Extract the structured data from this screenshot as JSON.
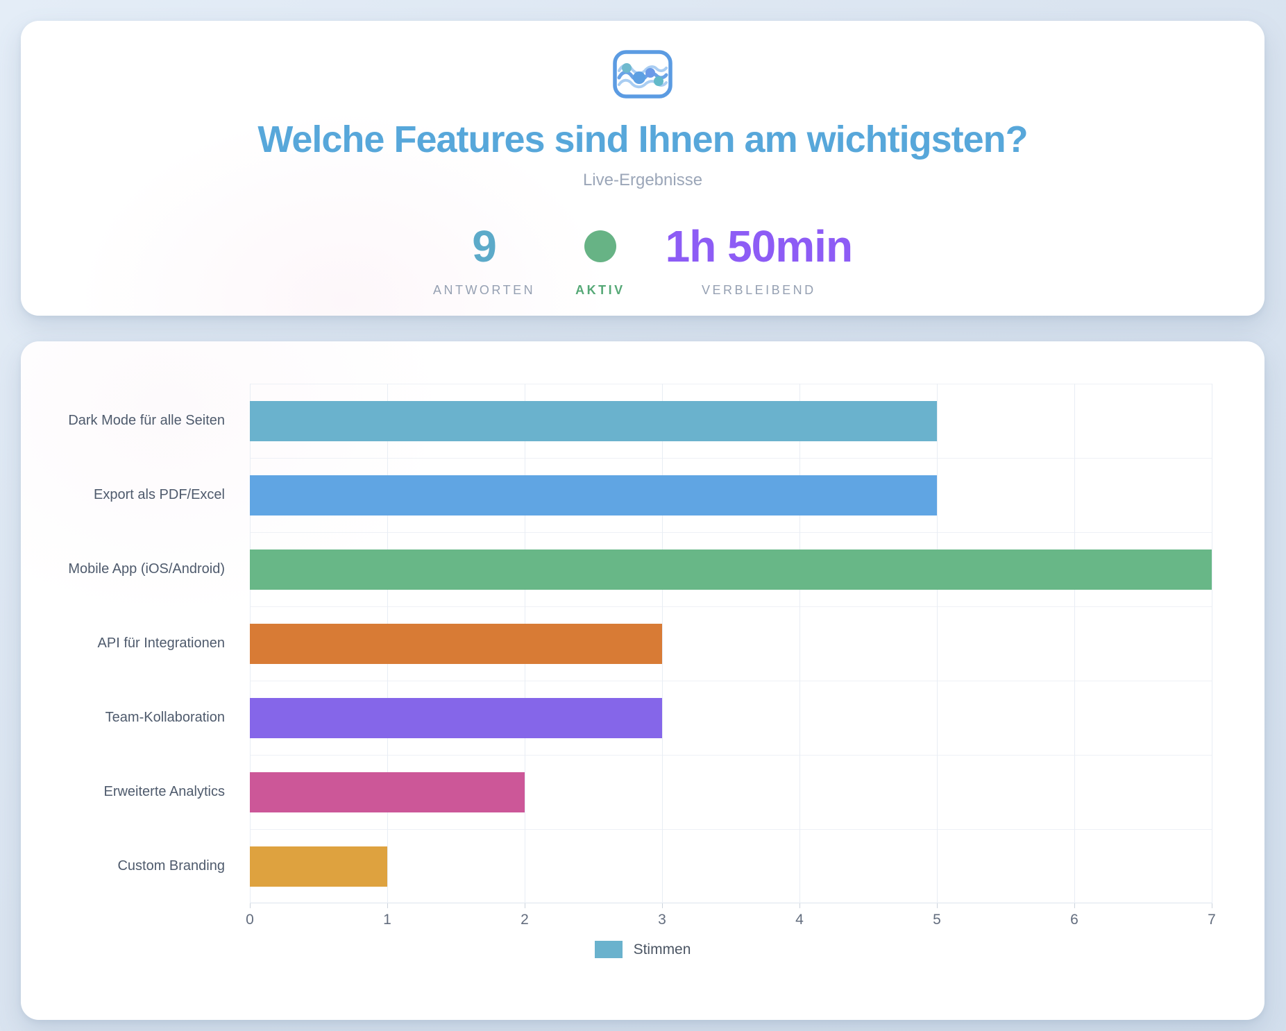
{
  "header": {
    "logo_icon": "wave-stream-chart-icon",
    "title": "Welche Features sind Ihnen am wichtigsten?",
    "subtitle": "Live-Ergebnisse",
    "stats": [
      {
        "id": "answers",
        "value": "9",
        "label": "ANTWORTEN",
        "color": "#5caac9",
        "dot": false
      },
      {
        "id": "active",
        "value": "",
        "label": "AKTIV",
        "color": "#67b385",
        "dot": true
      },
      {
        "id": "remaining",
        "value": "1h 50min",
        "label": "VERBLEIBEND",
        "color": "#8d5cf5",
        "dot": false
      }
    ]
  },
  "chart_data": {
    "type": "bar",
    "orientation": "horizontal",
    "title": "",
    "categories": [
      "Dark Mode für alle Seiten",
      "Export als PDF/Excel",
      "Mobile App (iOS/Android)",
      "API für Integrationen",
      "Team-Kollaboration",
      "Erweiterte Analytics",
      "Custom Branding"
    ],
    "values": [
      5,
      5,
      7,
      3,
      3,
      2,
      1
    ],
    "bar_colors": [
      "#6ab2cd",
      "#60a5e3",
      "#68b787",
      "#d87b35",
      "#8566e9",
      "#cc5798",
      "#dea23f"
    ],
    "series_name": "Stimmen",
    "legend_swatch_color": "#6ab2cd",
    "legend_position": "bottom",
    "xlim": [
      0,
      7
    ],
    "x_ticks": [
      "0",
      "1",
      "2",
      "3",
      "4",
      "5",
      "6",
      "7"
    ],
    "grid": true
  }
}
